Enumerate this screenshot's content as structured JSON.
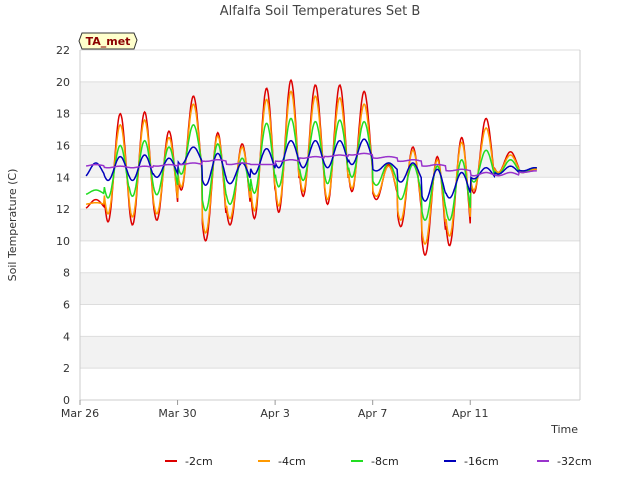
{
  "chart_data": {
    "type": "line",
    "title": "Alfalfa Soil Temperatures Set B",
    "xlabel": "Time",
    "ylabel": "Soil Temperature (C)",
    "badge": "TA_met",
    "ylim": [
      0,
      22
    ],
    "yticks": [
      "0",
      "2",
      "4",
      "6",
      "8",
      "10",
      "12",
      "14",
      "16",
      "18",
      "20",
      "22"
    ],
    "xlim_days": [
      0,
      20.5
    ],
    "xticks": [
      {
        "label": "Mar 26",
        "day": 0
      },
      {
        "label": "Mar 30",
        "day": 4
      },
      {
        "label": "Apr 3",
        "day": 8
      },
      {
        "label": "Apr 7",
        "day": 12
      },
      {
        "label": "Apr 11",
        "day": 16
      }
    ],
    "x_start_date": "Mar 26",
    "grid": true,
    "legend_position": "bottom",
    "daily": {
      "days": [
        0,
        1,
        2,
        3,
        4,
        5,
        6,
        7,
        8,
        9,
        10,
        11,
        12,
        13,
        14,
        15,
        16,
        17,
        18
      ],
      "series": [
        {
          "name": "-2cm",
          "color": "#dd0000",
          "max": [
            12.6,
            18.0,
            18.1,
            16.9,
            19.1,
            16.8,
            16.1,
            19.6,
            20.1,
            19.8,
            19.8,
            19.4,
            14.8,
            15.9,
            15.3,
            16.5,
            17.7,
            15.6,
            14.5
          ],
          "min": [
            12.0,
            11.2,
            11.0,
            11.3,
            13.2,
            10.0,
            11.0,
            11.4,
            11.8,
            12.8,
            12.3,
            13.1,
            12.6,
            10.9,
            9.1,
            9.7,
            13.0,
            14.3,
            14.3
          ]
        },
        {
          "name": "-4cm",
          "color": "#ff9900",
          "max": [
            12.4,
            17.3,
            17.6,
            16.5,
            18.6,
            16.6,
            15.9,
            18.9,
            19.4,
            19.1,
            19.0,
            18.6,
            14.7,
            15.7,
            15.1,
            16.2,
            17.1,
            15.4,
            14.5
          ],
          "min": [
            12.3,
            11.7,
            11.5,
            11.7,
            13.4,
            10.5,
            11.4,
            11.9,
            12.2,
            13.1,
            12.6,
            13.3,
            12.8,
            11.3,
            9.8,
            10.3,
            13.2,
            14.3,
            14.4
          ]
        },
        {
          "name": "-8cm",
          "color": "#22dd22",
          "max": [
            13.2,
            16.0,
            16.3,
            15.9,
            17.3,
            16.1,
            15.2,
            17.4,
            17.7,
            17.5,
            17.6,
            17.5,
            14.9,
            14.8,
            14.7,
            15.1,
            15.7,
            15.1,
            14.6
          ],
          "min": [
            12.9,
            12.7,
            12.8,
            12.9,
            14.2,
            11.9,
            12.3,
            13.0,
            13.4,
            13.8,
            13.6,
            14.0,
            13.5,
            12.6,
            11.3,
            11.3,
            13.7,
            14.2,
            14.3
          ]
        },
        {
          "name": "-16cm",
          "color": "#0000bb",
          "max": [
            14.9,
            15.3,
            15.4,
            15.2,
            15.9,
            15.5,
            14.9,
            15.8,
            16.3,
            16.3,
            16.3,
            16.4,
            14.9,
            14.9,
            14.5,
            14.3,
            14.6,
            14.7,
            14.6
          ],
          "min": [
            14.0,
            13.8,
            13.8,
            14.0,
            14.8,
            13.5,
            13.6,
            14.2,
            14.6,
            14.6,
            14.6,
            14.8,
            14.4,
            13.7,
            12.5,
            12.7,
            13.9,
            14.2,
            14.4
          ]
        },
        {
          "name": "-32cm",
          "color": "#9933cc",
          "max": [
            14.8,
            14.7,
            14.7,
            14.8,
            14.9,
            15.1,
            14.9,
            14.8,
            15.1,
            15.3,
            15.4,
            15.5,
            15.3,
            15.1,
            14.8,
            14.5,
            14.3,
            14.3,
            14.4
          ],
          "min": [
            14.7,
            14.6,
            14.6,
            14.7,
            14.8,
            15.0,
            14.8,
            14.8,
            15.0,
            15.2,
            15.3,
            15.4,
            15.2,
            15.0,
            14.7,
            14.4,
            14.1,
            14.1,
            14.3
          ]
        }
      ]
    }
  }
}
